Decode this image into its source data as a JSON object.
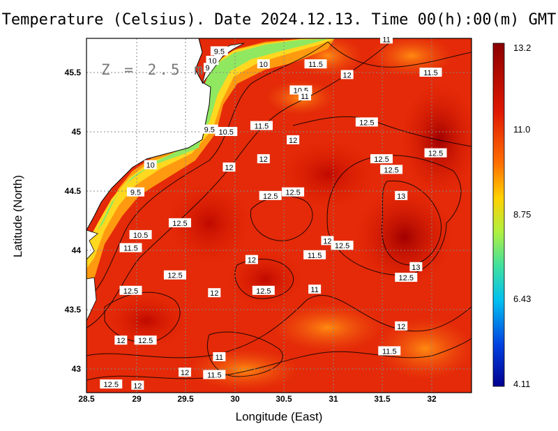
{
  "title": "Temperature (Celsius). Date 2024.12.13. Time 00(h):00(m) GMT",
  "depth_label": "Z = 2.5 m",
  "x_axis": {
    "label": "Longitude (East)",
    "ticks": [
      "28.5",
      "29",
      "29.5",
      "30",
      "30.5",
      "31",
      "31.5",
      "32"
    ]
  },
  "y_axis": {
    "label": "Latitude (North)",
    "ticks": [
      "45.5",
      "45",
      "44.5",
      "44",
      "43.5",
      "43"
    ]
  },
  "colorbar": {
    "labels": [
      "13.2",
      "11.0",
      "8.75",
      "6.43",
      "4.11"
    ],
    "colors": [
      "#8b0000",
      "#e82000",
      "#ff8000",
      "#ffe000",
      "#7ce060",
      "#00e0e0",
      "#0060ff",
      "#0000a0"
    ]
  },
  "contour_labels": [
    {
      "text": "9.5",
      "lon": 29.85,
      "lat": 45.68
    },
    {
      "text": "10",
      "lon": 29.78,
      "lat": 45.6
    },
    {
      "text": "9",
      "lon": 29.73,
      "lat": 45.54
    },
    {
      "text": "10",
      "lon": 30.3,
      "lat": 45.57
    },
    {
      "text": "11.5",
      "lon": 30.83,
      "lat": 45.57
    },
    {
      "text": "12",
      "lon": 31.15,
      "lat": 45.48
    },
    {
      "text": "11",
      "lon": 31.55,
      "lat": 45.78
    },
    {
      "text": "11.5",
      "lon": 32.0,
      "lat": 45.5
    },
    {
      "text": "10.5",
      "lon": 30.68,
      "lat": 45.35
    },
    {
      "text": "11",
      "lon": 30.72,
      "lat": 45.3
    },
    {
      "text": "9.5",
      "lon": 29.75,
      "lat": 45.02
    },
    {
      "text": "10.5",
      "lon": 29.92,
      "lat": 45.0
    },
    {
      "text": "11.5",
      "lon": 30.28,
      "lat": 45.05
    },
    {
      "text": "12.5",
      "lon": 31.35,
      "lat": 45.08
    },
    {
      "text": "12",
      "lon": 30.6,
      "lat": 44.93
    },
    {
      "text": "12.5",
      "lon": 32.05,
      "lat": 44.82
    },
    {
      "text": "10",
      "lon": 29.15,
      "lat": 44.72
    },
    {
      "text": "12",
      "lon": 29.95,
      "lat": 44.7
    },
    {
      "text": "12",
      "lon": 30.3,
      "lat": 44.77
    },
    {
      "text": "12.5",
      "lon": 31.5,
      "lat": 44.77
    },
    {
      "text": "12.5",
      "lon": 31.6,
      "lat": 44.68
    },
    {
      "text": "9.5",
      "lon": 29.0,
      "lat": 44.49
    },
    {
      "text": "12.5",
      "lon": 30.37,
      "lat": 44.46
    },
    {
      "text": "12.5",
      "lon": 30.6,
      "lat": 44.49
    },
    {
      "text": "13",
      "lon": 31.7,
      "lat": 44.46
    },
    {
      "text": "12.5",
      "lon": 29.45,
      "lat": 44.23
    },
    {
      "text": "10.5",
      "lon": 29.05,
      "lat": 44.13
    },
    {
      "text": "11.5",
      "lon": 28.95,
      "lat": 44.02
    },
    {
      "text": "12",
      "lon": 30.95,
      "lat": 44.08
    },
    {
      "text": "12.5",
      "lon": 31.1,
      "lat": 44.04
    },
    {
      "text": "11.5",
      "lon": 30.82,
      "lat": 43.96
    },
    {
      "text": "12",
      "lon": 30.18,
      "lat": 43.92
    },
    {
      "text": "13",
      "lon": 31.85,
      "lat": 43.86
    },
    {
      "text": "12.5",
      "lon": 29.4,
      "lat": 43.79
    },
    {
      "text": "12.5",
      "lon": 31.75,
      "lat": 43.77
    },
    {
      "text": "11",
      "lon": 30.82,
      "lat": 43.67
    },
    {
      "text": "12.5",
      "lon": 28.95,
      "lat": 43.66
    },
    {
      "text": "12",
      "lon": 29.8,
      "lat": 43.64
    },
    {
      "text": "12.5",
      "lon": 30.3,
      "lat": 43.66
    },
    {
      "text": "12",
      "lon": 31.7,
      "lat": 43.36
    },
    {
      "text": "12",
      "lon": 28.85,
      "lat": 43.24
    },
    {
      "text": "12.5",
      "lon": 29.1,
      "lat": 43.24
    },
    {
      "text": "11.5",
      "lon": 31.58,
      "lat": 43.15
    },
    {
      "text": "11",
      "lon": 29.85,
      "lat": 43.1
    },
    {
      "text": "12",
      "lon": 29.5,
      "lat": 42.97
    },
    {
      "text": "11.5",
      "lon": 29.8,
      "lat": 42.95
    },
    {
      "text": "12.5",
      "lon": 28.75,
      "lat": 42.87
    },
    {
      "text": "12",
      "lon": 29.02,
      "lat": 42.86
    }
  ]
}
